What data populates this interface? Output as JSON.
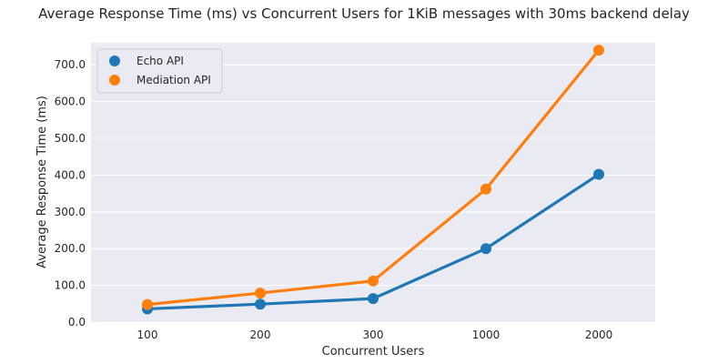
{
  "chart_data": {
    "type": "line",
    "title": "Average Response Time (ms) vs Concurrent Users for 1KiB messages with 30ms backend delay",
    "xlabel": "Concurrent Users",
    "ylabel": "Average Response Time (ms)",
    "categories": [
      "100",
      "200",
      "300",
      "1000",
      "2000"
    ],
    "ylim": [
      0,
      760
    ],
    "yticks": [
      "0.0",
      "100.0",
      "200.0",
      "300.0",
      "400.0",
      "500.0",
      "600.0",
      "700.0"
    ],
    "grid": true,
    "legend_position": "top-left",
    "series": [
      {
        "name": "Echo API",
        "color": "#1f77b4",
        "values": [
          36,
          49,
          64,
          200,
          402
        ]
      },
      {
        "name": "Mediation API",
        "color": "#ff7f0e",
        "values": [
          48,
          79,
          112,
          362,
          740
        ]
      }
    ],
    "background_color": "#eaeaf2",
    "grid_color": "#ffffff",
    "marker": "circle"
  }
}
